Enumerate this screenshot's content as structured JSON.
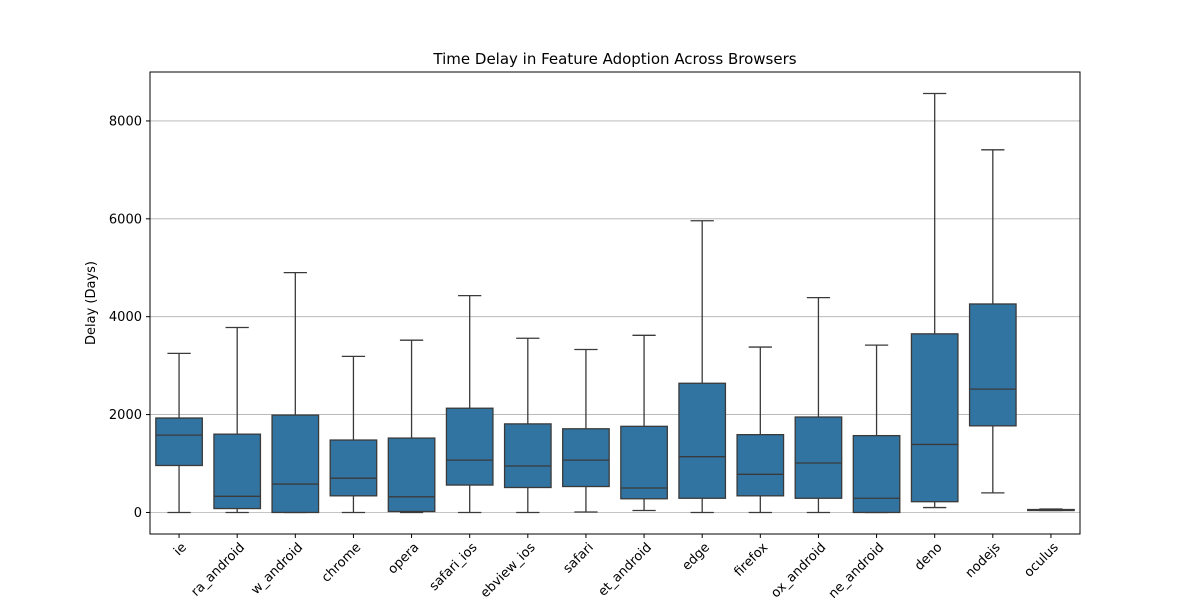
{
  "chart_data": {
    "type": "box",
    "title": "Time Delay in Feature Adoption Across Browsers",
    "xlabel": "",
    "ylabel": "Delay (Days)",
    "ylim": [
      -440,
      9000
    ],
    "yticks": [
      0,
      2000,
      4000,
      6000,
      8000
    ],
    "ytick_labels": [
      "0",
      "2000",
      "4000",
      "6000",
      "8000"
    ],
    "grid": "horizontal",
    "box_color": "#3274a1",
    "line_color": "#3a3a3a",
    "categories": [
      "ie",
      "opera_android",
      "webview_android",
      "chrome",
      "opera",
      "safari_ios",
      "webview_ios",
      "safari",
      "samsunginternet_android",
      "edge",
      "firefox",
      "firefox_android",
      "chrome_android",
      "deno",
      "nodejs",
      "oculus"
    ],
    "category_labels": [
      "ie",
      "ra_android",
      "w_android",
      "chrome",
      "opera",
      "safari_ios",
      "ebview_ios",
      "safari",
      "et_android",
      "edge",
      "firefox",
      "ox_android",
      "ne_android",
      "deno",
      "nodejs",
      "oculus"
    ],
    "boxes": [
      {
        "category": "ie",
        "whisker_low": 0,
        "q1": 960,
        "median": 1580,
        "q3": 1930,
        "whisker_high": 3250
      },
      {
        "category": "opera_android",
        "whisker_low": 0,
        "q1": 80,
        "median": 330,
        "q3": 1600,
        "whisker_high": 3780
      },
      {
        "category": "webview_android",
        "whisker_low": 0,
        "q1": 0,
        "median": 580,
        "q3": 1990,
        "whisker_high": 4900
      },
      {
        "category": "chrome",
        "whisker_low": 0,
        "q1": 340,
        "median": 700,
        "q3": 1480,
        "whisker_high": 3190
      },
      {
        "category": "opera",
        "whisker_low": 0,
        "q1": 20,
        "median": 320,
        "q3": 1520,
        "whisker_high": 3520
      },
      {
        "category": "safari_ios",
        "whisker_low": 0,
        "q1": 560,
        "median": 1070,
        "q3": 2130,
        "whisker_high": 4430
      },
      {
        "category": "webview_ios",
        "whisker_low": 0,
        "q1": 510,
        "median": 950,
        "q3": 1810,
        "whisker_high": 3560
      },
      {
        "category": "safari",
        "whisker_low": 10,
        "q1": 530,
        "median": 1070,
        "q3": 1710,
        "whisker_high": 3330
      },
      {
        "category": "samsunginternet_android",
        "whisker_low": 40,
        "q1": 280,
        "median": 500,
        "q3": 1760,
        "whisker_high": 3620
      },
      {
        "category": "edge",
        "whisker_low": 0,
        "q1": 290,
        "median": 1140,
        "q3": 2640,
        "whisker_high": 5960
      },
      {
        "category": "firefox",
        "whisker_low": 0,
        "q1": 340,
        "median": 780,
        "q3": 1590,
        "whisker_high": 3380
      },
      {
        "category": "firefox_android",
        "whisker_low": 0,
        "q1": 290,
        "median": 1010,
        "q3": 1950,
        "whisker_high": 4390
      },
      {
        "category": "chrome_android",
        "whisker_low": 0,
        "q1": 0,
        "median": 290,
        "q3": 1570,
        "whisker_high": 3420
      },
      {
        "category": "deno",
        "whisker_low": 100,
        "q1": 220,
        "median": 1390,
        "q3": 3650,
        "whisker_high": 8560
      },
      {
        "category": "nodejs",
        "whisker_low": 400,
        "q1": 1770,
        "median": 2520,
        "q3": 4260,
        "whisker_high": 7410
      },
      {
        "category": "oculus",
        "whisker_low": 40,
        "q1": 50,
        "median": 55,
        "q3": 60,
        "whisker_high": 70
      }
    ]
  }
}
